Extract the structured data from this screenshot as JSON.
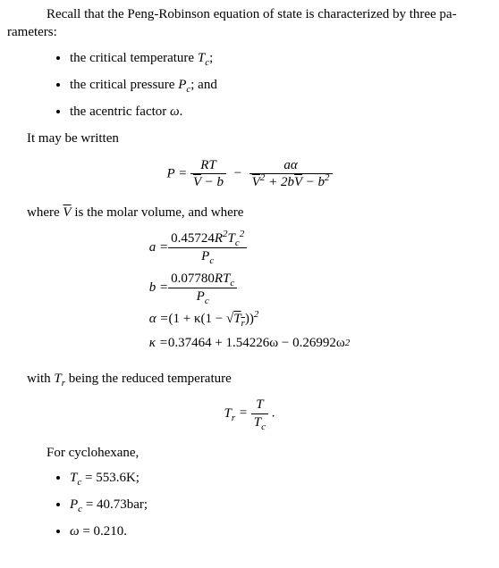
{
  "para_intro_1": "Recall that the Peng-Robinson equation of state is characterized by three pa-",
  "para_intro_2": "rameters:",
  "bullets1": {
    "b1_pre": "the critical temperature ",
    "b1_sym": "T",
    "b1_sub": "c",
    "b1_post": ";",
    "b2_pre": "the critical pressure ",
    "b2_sym": "P",
    "b2_sub": "c",
    "b2_post": "; and",
    "b3_pre": "the acentric factor ",
    "b3_sym": "ω",
    "b3_post": "."
  },
  "written": "It may be written",
  "eq_main": {
    "lhs": "P = ",
    "t1_num": "RT",
    "t1_den_pre": "V",
    "t1_den_post": " − b",
    "minus": " − ",
    "t2_num": "aα",
    "t2_den_a": "V",
    "t2_den_b": " + 2b",
    "t2_den_c": "V",
    "t2_den_d": " − b",
    "sq": "2"
  },
  "where1_pre": "where ",
  "where1_v": "V",
  "where1_post": " is the molar volume, and where",
  "eq_a": {
    "lhs": "a = ",
    "num_pre": "0.45724",
    "num_R": "R",
    "num_T": "T",
    "sup2": "2",
    "sub_c": "c",
    "den_P": "P",
    "den_sub": "c"
  },
  "eq_b": {
    "lhs": "b = ",
    "num_pre": "0.07780",
    "num_R": "R",
    "num_T": "T",
    "sub_c": "c",
    "den_P": "P",
    "den_sub": "c"
  },
  "eq_alpha": {
    "lhs": "α = ",
    "open": "(1 + κ(1 − ",
    "sqrt": "√",
    "Tr": "T",
    "r": "r",
    "close": "))",
    "sup2": "2"
  },
  "eq_kappa": {
    "lhs": "κ = ",
    "body": "0.37464 + 1.54226ω − 0.26992ω",
    "sup2": "2"
  },
  "with_tr_pre": "with ",
  "with_tr_T": "T",
  "with_tr_r": "r",
  "with_tr_post": " being the reduced temperature",
  "eq_tr": {
    "lhs_T": "T",
    "lhs_r": "r",
    "eq": " = ",
    "num": "T",
    "den_T": "T",
    "den_c": "c",
    "dot": " ."
  },
  "cyclo": "For cyclohexane,",
  "bullets2": {
    "b1_sym": "T",
    "b1_sub": "c",
    "b1_val": " = 553.6K;",
    "b2_sym": "P",
    "b2_sub": "c",
    "b2_val": " = 40.73bar;",
    "b3_sym": "ω",
    "b3_val": " = 0.210."
  }
}
